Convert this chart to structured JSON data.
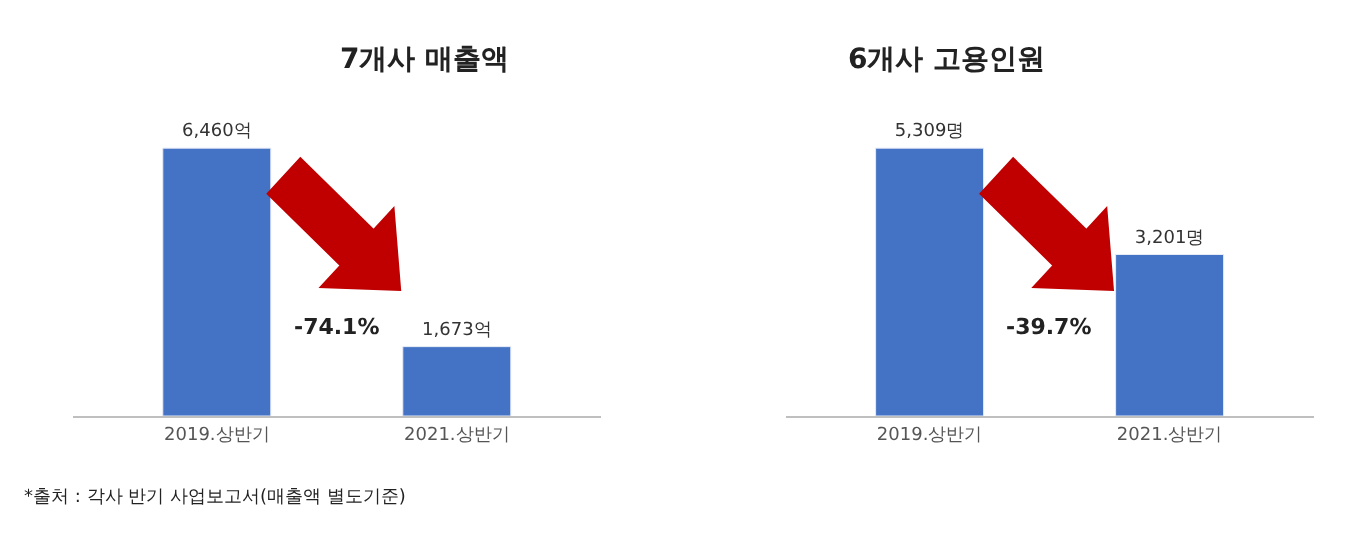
{
  "chart_data": [
    {
      "type": "bar",
      "title": "7개사 매출액",
      "categories": [
        "2019.상반기",
        "2021.상반기"
      ],
      "values": [
        6460,
        1673
      ],
      "value_labels": [
        "6,460억",
        "1,673억"
      ],
      "color": "#4472c4",
      "annotations": [
        "-74.1%",
        "*출처 : 각사 반기 사업보고서(매출액 별도기준)"
      ]
    },
    {
      "type": "bar",
      "title": "6개사 고용인원",
      "categories": [
        "2019.상반기",
        "2021.상반기"
      ],
      "values": [
        5309,
        3201
      ],
      "value_labels": [
        "5,309명",
        "3,201명"
      ],
      "color": "#4472c4",
      "annotations": [
        "-39.7%"
      ]
    }
  ]
}
